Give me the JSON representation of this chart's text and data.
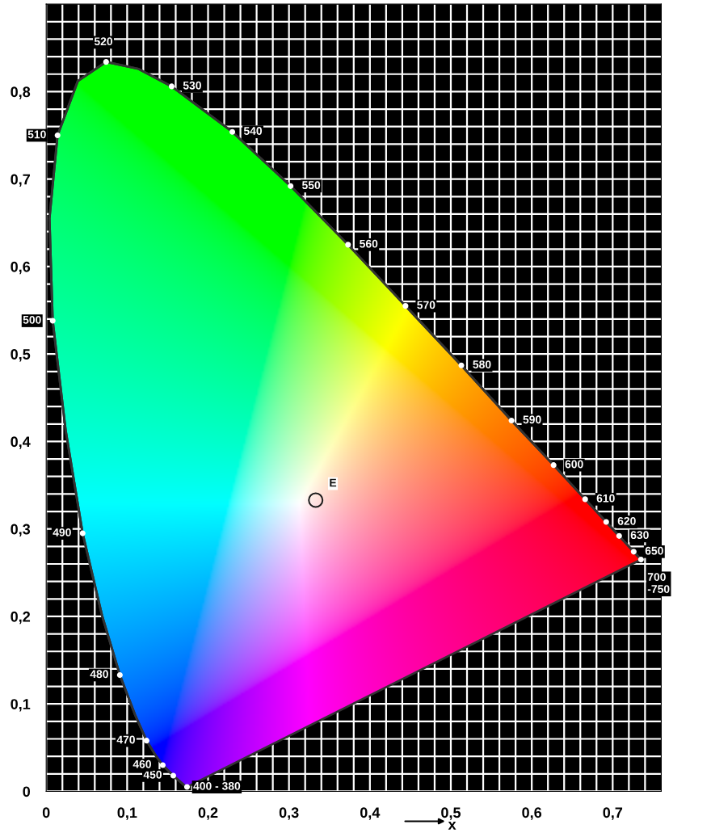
{
  "chart_data": {
    "type": "line",
    "xlabel": "x",
    "xlim": [
      0,
      0.76
    ],
    "ylim": [
      0,
      0.9
    ],
    "xticks": [
      {
        "value": 0,
        "label": "0"
      },
      {
        "value": 0.02,
        "label": null
      },
      {
        "value": 0.04,
        "label": null
      },
      {
        "value": 0.06,
        "label": null
      },
      {
        "value": 0.08,
        "label": null
      },
      {
        "value": 0.1,
        "label": "0,1"
      },
      {
        "value": 0.12,
        "label": null
      },
      {
        "value": 0.14,
        "label": null
      },
      {
        "value": 0.16,
        "label": null
      },
      {
        "value": 0.18,
        "label": null
      },
      {
        "value": 0.2,
        "label": "0,2"
      },
      {
        "value": 0.22,
        "label": null
      },
      {
        "value": 0.24,
        "label": null
      },
      {
        "value": 0.26,
        "label": null
      },
      {
        "value": 0.28,
        "label": null
      },
      {
        "value": 0.3,
        "label": "0,3"
      },
      {
        "value": 0.32,
        "label": null
      },
      {
        "value": 0.34,
        "label": null
      },
      {
        "value": 0.36,
        "label": null
      },
      {
        "value": 0.38,
        "label": null
      },
      {
        "value": 0.4,
        "label": "0,4"
      },
      {
        "value": 0.42,
        "label": null
      },
      {
        "value": 0.44,
        "label": null
      },
      {
        "value": 0.46,
        "label": null
      },
      {
        "value": 0.48,
        "label": null
      },
      {
        "value": 0.5,
        "label": "0,5"
      },
      {
        "value": 0.52,
        "label": null
      },
      {
        "value": 0.54,
        "label": null
      },
      {
        "value": 0.56,
        "label": null
      },
      {
        "value": 0.58,
        "label": null
      },
      {
        "value": 0.6,
        "label": "0,6"
      },
      {
        "value": 0.62,
        "label": null
      },
      {
        "value": 0.64,
        "label": null
      },
      {
        "value": 0.66,
        "label": null
      },
      {
        "value": 0.68,
        "label": null
      },
      {
        "value": 0.7,
        "label": "0,7"
      },
      {
        "value": 0.72,
        "label": null
      },
      {
        "value": 0.74,
        "label": null
      }
    ],
    "yticks": [
      {
        "value": 0,
        "label": "0"
      },
      {
        "value": 0.02,
        "label": null
      },
      {
        "value": 0.04,
        "label": null
      },
      {
        "value": 0.06,
        "label": null
      },
      {
        "value": 0.08,
        "label": null
      },
      {
        "value": 0.1,
        "label": "0,1"
      },
      {
        "value": 0.12,
        "label": null
      },
      {
        "value": 0.14,
        "label": null
      },
      {
        "value": 0.16,
        "label": null
      },
      {
        "value": 0.18,
        "label": null
      },
      {
        "value": 0.2,
        "label": "0,2"
      },
      {
        "value": 0.22,
        "label": null
      },
      {
        "value": 0.24,
        "label": null
      },
      {
        "value": 0.26,
        "label": null
      },
      {
        "value": 0.28,
        "label": null
      },
      {
        "value": 0.3,
        "label": "0,3"
      },
      {
        "value": 0.32,
        "label": null
      },
      {
        "value": 0.34,
        "label": null
      },
      {
        "value": 0.36,
        "label": null
      },
      {
        "value": 0.38,
        "label": null
      },
      {
        "value": 0.4,
        "label": "0,4"
      },
      {
        "value": 0.42,
        "label": null
      },
      {
        "value": 0.44,
        "label": null
      },
      {
        "value": 0.46,
        "label": null
      },
      {
        "value": 0.48,
        "label": null
      },
      {
        "value": 0.5,
        "label": "0,5"
      },
      {
        "value": 0.52,
        "label": null
      },
      {
        "value": 0.54,
        "label": null
      },
      {
        "value": 0.56,
        "label": null
      },
      {
        "value": 0.58,
        "label": null
      },
      {
        "value": 0.6,
        "label": "0,6"
      },
      {
        "value": 0.62,
        "label": null
      },
      {
        "value": 0.64,
        "label": null
      },
      {
        "value": 0.66,
        "label": null
      },
      {
        "value": 0.68,
        "label": null
      },
      {
        "value": 0.7,
        "label": "0,7"
      },
      {
        "value": 0.72,
        "label": null
      },
      {
        "value": 0.74,
        "label": null
      },
      {
        "value": 0.76,
        "label": null
      },
      {
        "value": 0.78,
        "label": null
      },
      {
        "value": 0.8,
        "label": "0,8"
      },
      {
        "value": 0.82,
        "label": null
      },
      {
        "value": 0.84,
        "label": null
      },
      {
        "value": 0.86,
        "label": null
      },
      {
        "value": 0.88,
        "label": null
      }
    ],
    "grid": true,
    "marker": "none",
    "line_style": "solid",
    "series": [
      {
        "color": "#333333",
        "x": [
          0.174,
          0.173,
          0.157,
          0.144,
          0.136,
          0.124,
          0.11,
          0.091,
          0.069,
          0.045,
          0.024,
          0.008,
          0.004,
          0.014,
          0.039,
          0.074,
          0.114,
          0.155,
          0.23,
          0.302,
          0.373,
          0.444,
          0.513,
          0.575,
          0.627,
          0.666,
          0.692,
          0.708,
          0.726,
          0.735
        ],
        "values": [
          0.005,
          0.005,
          0.018,
          0.03,
          0.04,
          0.058,
          0.087,
          0.133,
          0.201,
          0.295,
          0.413,
          0.538,
          0.655,
          0.75,
          0.812,
          0.834,
          0.826,
          0.806,
          0.754,
          0.692,
          0.625,
          0.555,
          0.487,
          0.424,
          0.373,
          0.334,
          0.308,
          0.292,
          0.274,
          0.265
        ]
      },
      {
        "type": "scatter",
        "marker": "circle",
        "color": "#ffffff",
        "x": [
          0.174,
          0.157,
          0.144,
          0.124,
          0.091,
          0.045,
          0.008,
          0.014,
          0.074,
          0.155,
          0.23,
          0.302,
          0.373,
          0.444,
          0.513,
          0.575,
          0.627,
          0.666,
          0.692,
          0.708,
          0.726,
          0.735
        ],
        "values": [
          0.005,
          0.018,
          0.03,
          0.058,
          0.133,
          0.295,
          0.538,
          0.75,
          0.834,
          0.806,
          0.754,
          0.692,
          0.625,
          0.555,
          0.487,
          0.424,
          0.373,
          0.334,
          0.308,
          0.292,
          0.274,
          0.265
        ]
      },
      {
        "type": "scatter",
        "marker": "circle",
        "color": "#1a1a1a",
        "x": [
          0.333
        ],
        "values": [
          0.333
        ]
      }
    ],
    "annotations": [
      {
        "text": "400 - 380",
        "x": 0.174,
        "y": 0.005
      },
      {
        "text": "450",
        "x": 0.157,
        "y": 0.018
      },
      {
        "text": "460",
        "x": 0.144,
        "y": 0.03
      },
      {
        "text": "470",
        "x": 0.124,
        "y": 0.058
      },
      {
        "text": "480",
        "x": 0.091,
        "y": 0.133
      },
      {
        "text": "490",
        "x": 0.045,
        "y": 0.295
      },
      {
        "text": "500",
        "x": 0.008,
        "y": 0.538
      },
      {
        "text": "510",
        "x": 0.014,
        "y": 0.75
      },
      {
        "text": "520",
        "x": 0.074,
        "y": 0.834
      },
      {
        "text": "530",
        "x": 0.155,
        "y": 0.806
      },
      {
        "text": "540",
        "x": 0.23,
        "y": 0.754
      },
      {
        "text": "550",
        "x": 0.302,
        "y": 0.692
      },
      {
        "text": "560",
        "x": 0.373,
        "y": 0.625
      },
      {
        "text": "570",
        "x": 0.444,
        "y": 0.555
      },
      {
        "text": "580",
        "x": 0.513,
        "y": 0.487
      },
      {
        "text": "590",
        "x": 0.575,
        "y": 0.424
      },
      {
        "text": "600",
        "x": 0.627,
        "y": 0.373
      },
      {
        "text": "610",
        "x": 0.666,
        "y": 0.334
      },
      {
        "text": "620",
        "x": 0.692,
        "y": 0.308
      },
      {
        "text": "630",
        "x": 0.708,
        "y": 0.292
      },
      {
        "text": "650",
        "x": 0.726,
        "y": 0.274
      },
      {
        "text": "700\n-750",
        "x": 0.735,
        "y": 0.265
      },
      {
        "text": "E",
        "x": 0.333,
        "y": 0.333
      }
    ]
  }
}
